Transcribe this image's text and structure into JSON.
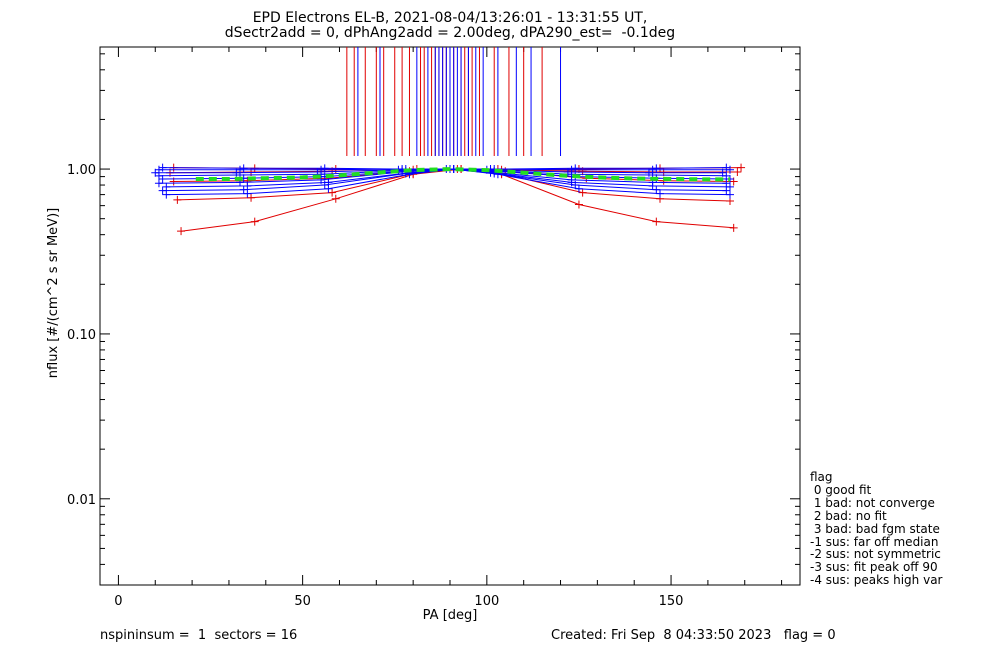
{
  "chart_data": {
    "type": "line",
    "title_line1": "EPD Electrons EL-B, 2021-08-04/13:26:01 - 13:31:55 UT,",
    "title_line2": "dSectr2add = 0, dPhAng2add = 2.00deg, dPA290_est=  -0.1deg",
    "xlabel": "PA [deg]",
    "ylabel": "nflux [#/(cm^2 s sr MeV)]",
    "xlim": [
      -5,
      185
    ],
    "ylim": [
      0.003,
      5.5
    ],
    "yscale": "log",
    "x_ticks": [
      0,
      50,
      100,
      150
    ],
    "x_tick_labels": [
      "0",
      "50",
      "100",
      "150"
    ],
    "y_ticks": [
      0.01,
      0.1,
      1.0
    ],
    "y_tick_labels": [
      "0.01",
      "0.10",
      "1.00"
    ],
    "colors": {
      "series_red": "#e00000",
      "series_blue": "#0000ff",
      "fit": "#22dd22"
    },
    "red_series": [
      {
        "x": [
          17,
          37,
          59,
          80,
          93,
          104,
          125,
          146,
          167
        ],
        "y": [
          0.42,
          0.48,
          0.66,
          0.93,
          1.0,
          0.93,
          0.61,
          0.48,
          0.44
        ]
      },
      {
        "x": [
          16,
          36,
          58,
          80,
          93,
          104,
          126,
          147,
          166
        ],
        "y": [
          0.65,
          0.67,
          0.72,
          0.94,
          1.0,
          0.94,
          0.72,
          0.66,
          0.64
        ]
      },
      {
        "x": [
          15,
          35,
          57,
          79,
          93,
          105,
          127,
          148,
          167
        ],
        "y": [
          0.84,
          0.85,
          0.88,
          0.97,
          1.0,
          0.97,
          0.88,
          0.85,
          0.84
        ]
      },
      {
        "x": [
          14,
          36,
          58,
          80,
          92,
          104,
          126,
          148,
          168
        ],
        "y": [
          0.95,
          0.96,
          0.97,
          0.99,
          1.0,
          0.99,
          0.97,
          0.96,
          0.96
        ]
      },
      {
        "x": [
          15,
          37,
          59,
          81,
          93,
          103,
          125,
          147,
          169
        ],
        "y": [
          1.02,
          1.01,
          1.0,
          1.0,
          1.0,
          1.0,
          1.0,
          1.01,
          1.02
        ]
      }
    ],
    "blue_series": [
      {
        "x": [
          13,
          35,
          57,
          79,
          91,
          103,
          125,
          147,
          166
        ],
        "y": [
          0.7,
          0.71,
          0.76,
          0.93,
          1.0,
          0.93,
          0.76,
          0.71,
          0.7
        ]
      },
      {
        "x": [
          12,
          34,
          56,
          78,
          91,
          102,
          124,
          146,
          165
        ],
        "y": [
          0.74,
          0.75,
          0.8,
          0.94,
          1.0,
          0.94,
          0.8,
          0.75,
          0.74
        ]
      },
      {
        "x": [
          13,
          35,
          57,
          79,
          90,
          101,
          123,
          145,
          166
        ],
        "y": [
          0.78,
          0.79,
          0.83,
          0.95,
          1.0,
          0.95,
          0.83,
          0.79,
          0.78
        ]
      },
      {
        "x": [
          11,
          33,
          55,
          77,
          90,
          101,
          123,
          145,
          165
        ],
        "y": [
          0.82,
          0.83,
          0.86,
          0.96,
          1.0,
          0.96,
          0.86,
          0.83,
          0.82
        ]
      },
      {
        "x": [
          12,
          34,
          56,
          78,
          91,
          102,
          124,
          146,
          166
        ],
        "y": [
          0.87,
          0.88,
          0.9,
          0.97,
          1.0,
          0.97,
          0.9,
          0.88,
          0.87
        ]
      },
      {
        "x": [
          11,
          33,
          55,
          77,
          90,
          101,
          123,
          145,
          165
        ],
        "y": [
          0.91,
          0.92,
          0.93,
          0.98,
          1.0,
          0.98,
          0.93,
          0.92,
          0.91
        ]
      },
      {
        "x": [
          10,
          32,
          54,
          76,
          89,
          100,
          122,
          144,
          164
        ],
        "y": [
          0.95,
          0.95,
          0.96,
          0.99,
          1.0,
          0.99,
          0.96,
          0.95,
          0.95
        ]
      },
      {
        "x": [
          11,
          33,
          55,
          77,
          90,
          101,
          123,
          145,
          166
        ],
        "y": [
          0.99,
          0.99,
          0.99,
          1.0,
          1.0,
          1.0,
          0.99,
          0.99,
          0.99
        ]
      },
      {
        "x": [
          12,
          34,
          56,
          78,
          90,
          102,
          124,
          146,
          165
        ],
        "y": [
          1.02,
          1.01,
          1.01,
          1.0,
          1.0,
          1.0,
          1.01,
          1.01,
          1.02
        ]
      }
    ],
    "fit_curve": {
      "x": [
        21,
        30,
        40,
        50,
        60,
        70,
        80,
        90,
        100,
        110,
        120,
        130,
        140,
        150,
        160,
        166
      ],
      "y": [
        0.87,
        0.87,
        0.88,
        0.89,
        0.915,
        0.95,
        0.985,
        1.0,
        0.985,
        0.95,
        0.915,
        0.89,
        0.875,
        0.87,
        0.865,
        0.865
      ]
    },
    "spike_lines_red_x": [
      62,
      64,
      67,
      70,
      72,
      75,
      77,
      79,
      82,
      83,
      85,
      86,
      87,
      88,
      89,
      90,
      91,
      93,
      94,
      95,
      96,
      98,
      102,
      106,
      110,
      115
    ],
    "spike_lines_blue_x": [
      65,
      71,
      81,
      84,
      86,
      87,
      88,
      89,
      90,
      91,
      92,
      93,
      95,
      97,
      99,
      103,
      108,
      112,
      120
    ],
    "spike_range_y": [
      1.2,
      5.5
    ],
    "legend": [
      "flag",
      " 0 good fit",
      " 1 bad: not converge",
      " 2 bad: no fit",
      " 3 bad: bad fgm state",
      "-1 sus: far off median",
      "-2 sus: not symmetric",
      "-3 sus: fit peak off 90",
      "-4 sus: peaks high var"
    ]
  },
  "footer": {
    "left": "nspininsum =  1  sectors = 16",
    "right": "Created: Fri Sep  8 04:33:50 2023   flag = 0"
  }
}
